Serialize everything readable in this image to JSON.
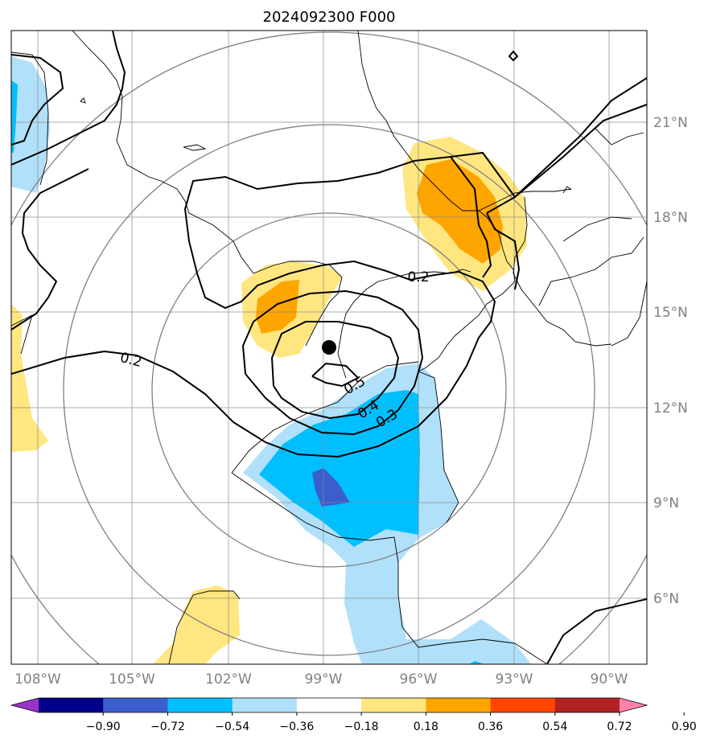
{
  "chart_data": {
    "type": "contour_map",
    "title": "2024092300 F000",
    "projection": "map",
    "lon_ticks": [
      "108°W",
      "105°W",
      "102°W",
      "99°W",
      "96°W",
      "93°W",
      "90°W"
    ],
    "lat_ticks": [
      "21°N",
      "18°N",
      "15°N",
      "12°N",
      "9°N",
      "6°N"
    ],
    "center_marker": {
      "lon": -98.9,
      "lat": 13.8
    },
    "contour_labels": [
      "0.2",
      "0.2",
      "0.5",
      "0.4",
      "0.3"
    ],
    "contour_levels": [
      0.2,
      0.3,
      0.4,
      0.5
    ],
    "colorbar": {
      "ticks": [
        "−0.90",
        "−0.72",
        "−0.54",
        "−0.36",
        "−0.18",
        "0.18",
        "0.36",
        "0.54",
        "0.72",
        "0.90"
      ],
      "colors": [
        "#9932cc",
        "#00008b",
        "#3a5fcd",
        "#00bfff",
        "#b0e0fa",
        "#ffffff",
        "#ffe680",
        "#ffa500",
        "#ff4500",
        "#b22222",
        "#ff82ab"
      ],
      "extend": "both"
    }
  }
}
